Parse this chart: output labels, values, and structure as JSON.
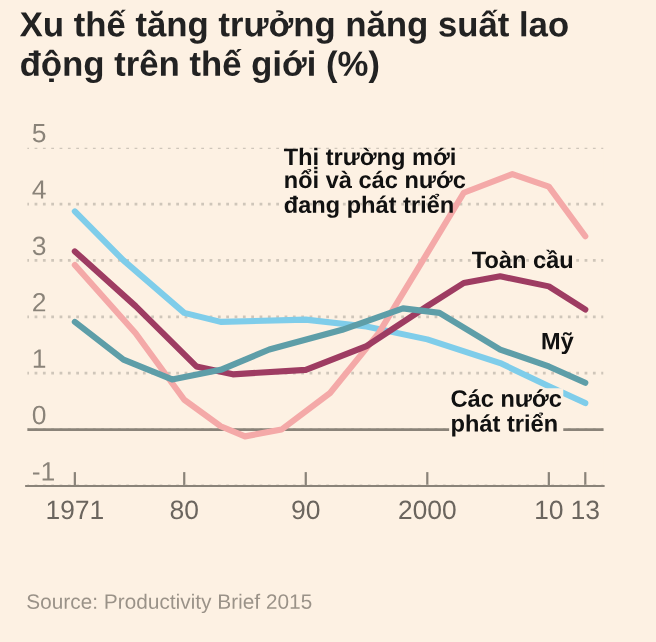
{
  "chart_data": {
    "type": "line",
    "title": "Xu thế tăng trưởng năng suất lao động trên thế giới (%)",
    "annotations": [
      "Source: Productivity Brief 2015"
    ],
    "series": [
      {
        "name": "Các nước phát triển",
        "color": "#7fcdea",
        "x": [
          1971,
          1975,
          1980,
          1983,
          1990,
          1995,
          2000,
          2006,
          2010,
          2013
        ],
        "values": [
          3.87,
          3.0,
          2.07,
          1.91,
          1.95,
          1.83,
          1.6,
          1.18,
          0.77,
          0.47
        ]
      },
      {
        "name": "Thị trường mới nổi và các nước đang phát triển",
        "color": "#f4a9a8",
        "x": [
          1971,
          1976,
          1980,
          1983,
          1985,
          1988,
          1992,
          1996,
          2000,
          2003,
          2007,
          2010,
          2013
        ],
        "values": [
          2.92,
          1.71,
          0.53,
          0.06,
          -0.12,
          0.0,
          0.65,
          1.71,
          3.13,
          4.2,
          4.53,
          4.31,
          3.43
        ]
      },
      {
        "name": "Toàn cầu",
        "color": "#9e3c62",
        "x": [
          1971,
          1976,
          1981,
          1984,
          1990,
          1995,
          2000,
          2003,
          2006,
          2010,
          2013
        ],
        "values": [
          3.16,
          2.19,
          1.12,
          0.98,
          1.06,
          1.48,
          2.19,
          2.6,
          2.72,
          2.54,
          2.13
        ]
      },
      {
        "name": "Mỹ",
        "color": "#5e9ea8",
        "x": [
          1971,
          1975,
          1979,
          1983,
          1987,
          1993,
          1998,
          2001,
          2006,
          2010,
          2013
        ],
        "values": [
          1.91,
          1.24,
          0.89,
          1.06,
          1.42,
          1.77,
          2.15,
          2.07,
          1.42,
          1.12,
          0.83
        ]
      }
    ],
    "xlim": [
      1967,
      2014.5
    ],
    "xticks": [
      1971,
      {
        "value": 1980,
        "label": "80"
      },
      {
        "value": 1990,
        "label": "90"
      },
      2000,
      {
        "value": 2010,
        "label": "10"
      },
      {
        "value": 2013,
        "label": "13"
      }
    ],
    "ylim": [
      -1,
      5
    ],
    "yticks": [
      -1,
      0,
      1,
      2,
      3,
      4,
      5
    ],
    "ref_lines": [
      {
        "axis": "y",
        "value": 0,
        "color": "#8a8379"
      }
    ],
    "grid": "y",
    "legend": false,
    "marker": "none",
    "line_style": "solid"
  }
}
